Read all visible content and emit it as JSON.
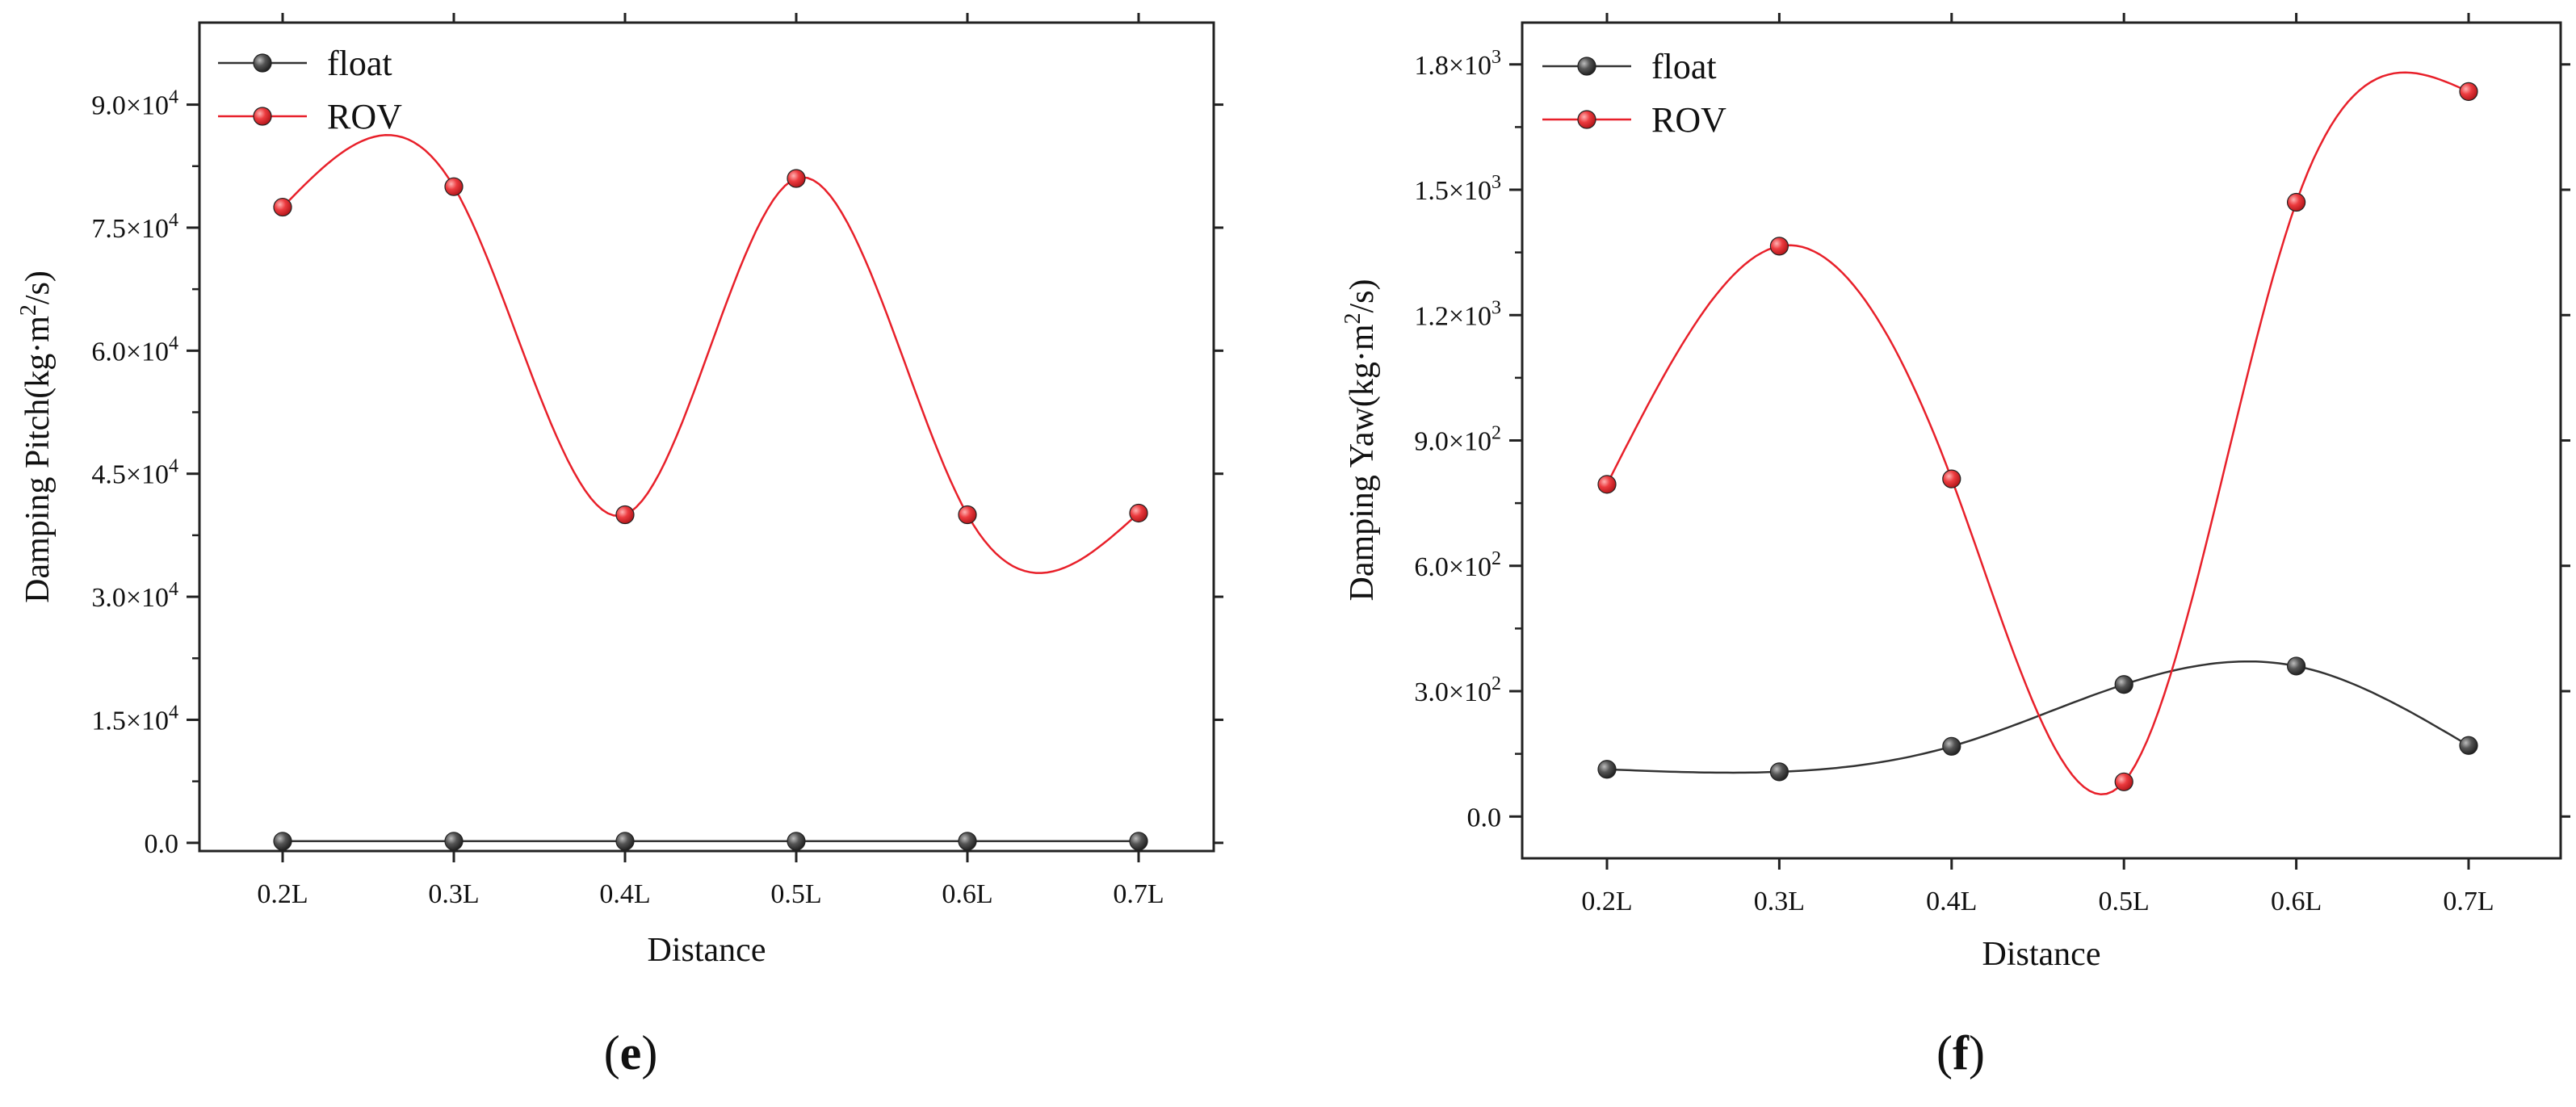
{
  "chart_data": [
    {
      "type": "line",
      "panel_label": "e",
      "xlabel": "Distance",
      "ylabel_prefix": "Damping Pitch(kg·m",
      "ylabel_sup": "2",
      "ylabel_suffix": "/s)",
      "categories": [
        "0.2L",
        "0.3L",
        "0.4L",
        "0.5L",
        "0.6L",
        "0.7L"
      ],
      "ylim": [
        -1000,
        100000
      ],
      "yticks": [
        {
          "value": 0,
          "mant": "0.0",
          "exp": ""
        },
        {
          "value": 15000,
          "mant": "1.5×10",
          "exp": "4"
        },
        {
          "value": 30000,
          "mant": "3.0×10",
          "exp": "4"
        },
        {
          "value": 45000,
          "mant": "4.5×10",
          "exp": "4"
        },
        {
          "value": 60000,
          "mant": "6.0×10",
          "exp": "4"
        },
        {
          "value": 75000,
          "mant": "7.5×10",
          "exp": "4"
        },
        {
          "value": 90000,
          "mant": "9.0×10",
          "exp": "4"
        }
      ],
      "legend_position": "top-left",
      "series": [
        {
          "name": "float",
          "color": "#333333",
          "marker": "#555555",
          "values": [
            200,
            200,
            200,
            200,
            200,
            200
          ]
        },
        {
          "name": "ROV",
          "color": "#e8202a",
          "marker": "#e8383c",
          "values": [
            77500,
            80000,
            40000,
            81000,
            40000,
            40200
          ]
        }
      ]
    },
    {
      "type": "line",
      "panel_label": "f",
      "xlabel": "Distance",
      "ylabel_prefix": "Damping Yaw(kg·m",
      "ylabel_sup": "2",
      "ylabel_suffix": "/s)",
      "categories": [
        "0.2L",
        "0.3L",
        "0.4L",
        "0.5L",
        "0.6L",
        "0.7L"
      ],
      "ylim": [
        -100,
        1900
      ],
      "yticks": [
        {
          "value": 0,
          "mant": "0.0",
          "exp": ""
        },
        {
          "value": 300,
          "mant": "3.0×10",
          "exp": "2"
        },
        {
          "value": 600,
          "mant": "6.0×10",
          "exp": "2"
        },
        {
          "value": 900,
          "mant": "9.0×10",
          "exp": "2"
        },
        {
          "value": 1200,
          "mant": "1.2×10",
          "exp": "3"
        },
        {
          "value": 1500,
          "mant": "1.5×10",
          "exp": "3"
        },
        {
          "value": 1800,
          "mant": "1.8×10",
          "exp": "3"
        }
      ],
      "legend_position": "top-left",
      "series": [
        {
          "name": "float",
          "color": "#333333",
          "marker": "#555555",
          "values": [
            113,
            107,
            168,
            316,
            360,
            170
          ]
        },
        {
          "name": "ROV",
          "color": "#e8202a",
          "marker": "#e8383c",
          "values": [
            795,
            1365,
            808,
            83,
            1470,
            1735
          ]
        }
      ]
    }
  ]
}
